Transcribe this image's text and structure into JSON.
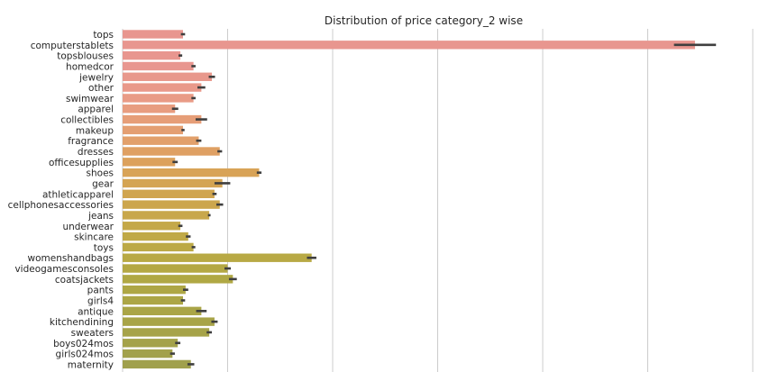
{
  "chart_data": {
    "type": "bar",
    "orientation": "horizontal",
    "title": "Distribution of price category_2 wise",
    "xlabel": "",
    "ylabel": "",
    "xlim": [
      0,
      240
    ],
    "grid": true,
    "categories": [
      "tops",
      "computerstablets",
      "topsblouses",
      "homedcor",
      "jewelry",
      "other",
      "swimwear",
      "apparel",
      "collectibles",
      "makeup",
      "fragrance",
      "dresses",
      "officesupplies",
      "shoes",
      "gear",
      "athleticapparel",
      "cellphonesaccessories",
      "jeans",
      "underwear",
      "skincare",
      "toys",
      "womenshandbags",
      "videogamesconsoles",
      "coatsjackets",
      "pants",
      "girls4",
      "antique",
      "kitchendining",
      "sweaters",
      "boys024mos",
      "girls024mos",
      "maternity"
    ],
    "values": [
      23,
      218,
      22,
      27,
      34,
      30,
      27,
      20,
      30,
      23,
      29,
      37,
      20,
      52,
      38,
      35,
      37,
      33,
      22,
      25,
      27,
      72,
      40,
      42,
      24,
      23,
      30,
      35,
      33,
      21,
      19,
      26
    ],
    "errors": [
      0.8,
      8,
      0.7,
      0.8,
      1.2,
      1.5,
      0.8,
      1.2,
      2.2,
      0.6,
      1.0,
      0.9,
      1.0,
      0.9,
      3.0,
      0.8,
      1.3,
      0.5,
      0.8,
      0.9,
      0.7,
      1.8,
      1.2,
      1.5,
      1.0,
      0.8,
      2.0,
      1.2,
      1.0,
      1.0,
      0.9,
      1.3
    ],
    "colors": [
      "#e8968f",
      "#e8968f",
      "#e8968f",
      "#e8968f",
      "#e8988c",
      "#e9998a",
      "#e99b86",
      "#e89d80",
      "#e69e78",
      "#e49f72",
      "#e2a06b",
      "#dfa063",
      "#dca15c",
      "#d8a357",
      "#d4a453",
      "#d0a54f",
      "#cca64d",
      "#c8a74b",
      "#c4a849",
      "#c0a947",
      "#bca946",
      "#b8a945",
      "#b4a844",
      "#b0a844",
      "#aea745",
      "#aca646",
      "#aaa547",
      "#a8a448",
      "#a6a349",
      "#a4a24a",
      "#a2a14b",
      "#a0a04c"
    ],
    "error_color": "#3f3f3f"
  }
}
